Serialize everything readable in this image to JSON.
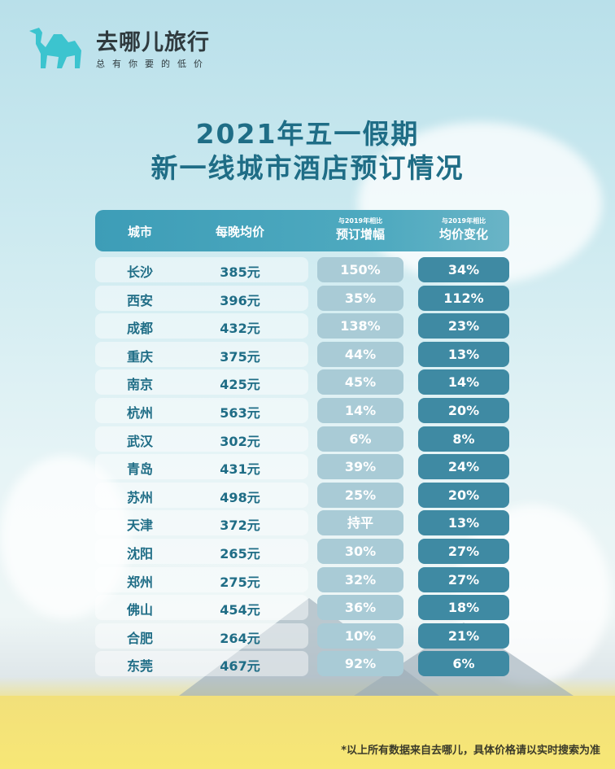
{
  "logo": {
    "brand": "去哪儿旅行",
    "slogan": "总有你要的低价",
    "color": "#3cc4cf"
  },
  "title": {
    "line1": "2021年五一假期",
    "line2": "新一线城市酒店预订情况"
  },
  "chart_data": {
    "type": "table",
    "columns": [
      {
        "label": "城市"
      },
      {
        "label": "每晚均价"
      },
      {
        "sublabel": "与2019年相比",
        "label": "预订增幅"
      },
      {
        "sublabel": "与2019年相比",
        "label": "均价变化"
      }
    ],
    "rows": [
      {
        "city": "长沙",
        "price": "385元",
        "booking": "150%",
        "price_change": "34%"
      },
      {
        "city": "西安",
        "price": "396元",
        "booking": "35%",
        "price_change": "112%"
      },
      {
        "city": "成都",
        "price": "432元",
        "booking": "138%",
        "price_change": "23%"
      },
      {
        "city": "重庆",
        "price": "375元",
        "booking": "44%",
        "price_change": "13%"
      },
      {
        "city": "南京",
        "price": "425元",
        "booking": "45%",
        "price_change": "14%"
      },
      {
        "city": "杭州",
        "price": "563元",
        "booking": "14%",
        "price_change": "20%"
      },
      {
        "city": "武汉",
        "price": "302元",
        "booking": "6%",
        "price_change": "8%"
      },
      {
        "city": "青岛",
        "price": "431元",
        "booking": "39%",
        "price_change": "24%"
      },
      {
        "city": "苏州",
        "price": "498元",
        "booking": "25%",
        "price_change": "20%"
      },
      {
        "city": "天津",
        "price": "372元",
        "booking": "持平",
        "price_change": "13%"
      },
      {
        "city": "沈阳",
        "price": "265元",
        "booking": "30%",
        "price_change": "27%"
      },
      {
        "city": "郑州",
        "price": "275元",
        "booking": "32%",
        "price_change": "27%"
      },
      {
        "city": "佛山",
        "price": "454元",
        "booking": "36%",
        "price_change": "18%"
      },
      {
        "city": "合肥",
        "price": "264元",
        "booking": "10%",
        "price_change": "21%"
      },
      {
        "city": "东莞",
        "price": "467元",
        "booking": "92%",
        "price_change": "6%"
      }
    ]
  },
  "footnote": "*以上所有数据来自去哪儿，具体价格请以实时搜索为准"
}
